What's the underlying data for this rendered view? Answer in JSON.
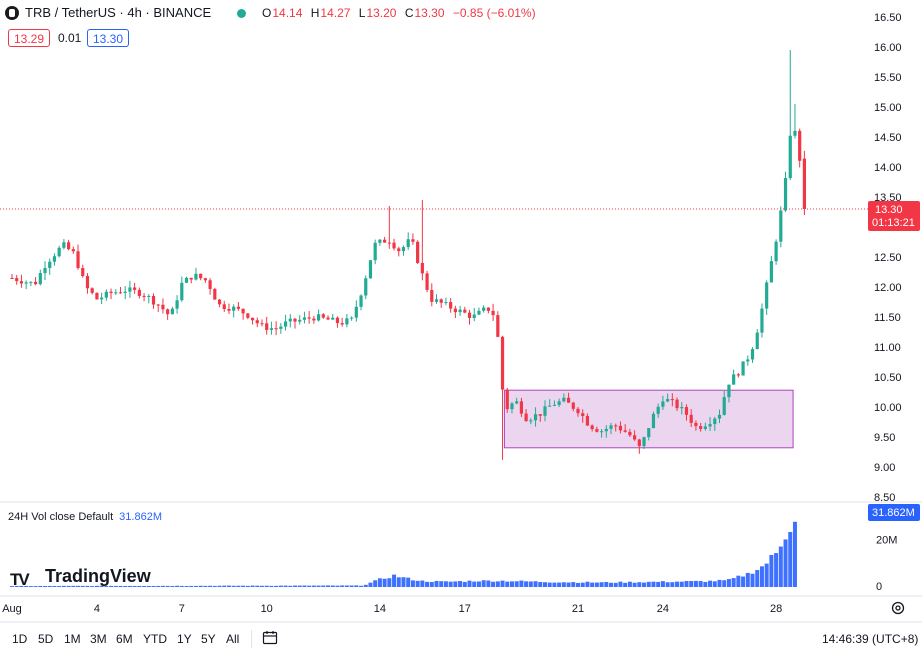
{
  "header": {
    "title": "TRB / TetherUS · 4h · BINANCE",
    "ohlc": [
      {
        "k": "O",
        "v": "14.14"
      },
      {
        "k": "H",
        "v": "14.27"
      },
      {
        "k": "L",
        "v": "13.20"
      },
      {
        "k": "C",
        "v": "13.30"
      }
    ],
    "change": "−0.85 (−6.01%)"
  },
  "quote": {
    "sell": "13.29",
    "spread": "0.01",
    "buy": "13.30"
  },
  "volume_pane": {
    "legend": "24H Vol close Default",
    "value": "31.862M"
  },
  "branding": "TradingView",
  "current_price": {
    "value": "13.30",
    "countdown": "01:13:21"
  },
  "timeframes": [
    "1D",
    "5D",
    "1M",
    "3M",
    "6M",
    "YTD",
    "1Y",
    "5Y",
    "All"
  ],
  "clock": "14:46:39 (UTC+8)",
  "colors": {
    "up": "#22ab94",
    "down": "#f23645",
    "volume": "#2962ff",
    "zone_fill": "#e1bee7",
    "zone_border": "#ab47bc"
  },
  "icons": {
    "calendar": "calendar-range-icon",
    "settings": "gear-icon"
  },
  "chart_data": {
    "type": "candlestick",
    "price_axis": {
      "ticks": [
        "16.50",
        "16.00",
        "15.50",
        "15.00",
        "14.50",
        "14.00",
        "13.50",
        "12.50",
        "12.00",
        "11.50",
        "11.00",
        "10.50",
        "10.00",
        "9.50",
        "9.00",
        "8.50"
      ],
      "range": [
        8.5,
        16.5
      ]
    },
    "time_axis": {
      "ticks": [
        "Aug",
        "4",
        "7",
        "10",
        "14",
        "17",
        "21",
        "24",
        "28"
      ],
      "day_range": [
        1,
        29
      ]
    },
    "volume_axis": {
      "ticks": [
        "20M",
        "0"
      ],
      "max_label": "31.862M",
      "max": 32
    },
    "zone": {
      "price_low": 9.32,
      "price_high": 10.28,
      "day_start": 18.4,
      "day_end": 28.6
    },
    "price_anchors": [
      [
        1.0,
        12.15
      ],
      [
        1.4,
        12.1
      ],
      [
        1.8,
        12.05
      ],
      [
        2.2,
        12.4
      ],
      [
        2.8,
        12.7
      ],
      [
        3.2,
        12.55
      ],
      [
        3.6,
        12.0
      ],
      [
        4.0,
        11.8
      ],
      [
        4.5,
        11.9
      ],
      [
        5.0,
        11.95
      ],
      [
        5.6,
        11.9
      ],
      [
        6.2,
        11.7
      ],
      [
        6.6,
        11.5
      ],
      [
        7.0,
        12.05
      ],
      [
        7.4,
        12.2
      ],
      [
        7.9,
        12.1
      ],
      [
        8.3,
        11.7
      ],
      [
        8.8,
        11.65
      ],
      [
        9.3,
        11.55
      ],
      [
        9.8,
        11.35
      ],
      [
        10.3,
        11.3
      ],
      [
        10.7,
        11.4
      ],
      [
        11.2,
        11.45
      ],
      [
        11.7,
        11.5
      ],
      [
        12.2,
        11.45
      ],
      [
        12.6,
        11.4
      ],
      [
        13.0,
        11.45
      ],
      [
        13.4,
        12.0
      ],
      [
        13.8,
        12.7
      ],
      [
        14.3,
        12.8
      ],
      [
        14.7,
        12.6
      ],
      [
        15.1,
        12.8
      ],
      [
        15.5,
        12.2
      ],
      [
        15.8,
        11.8
      ],
      [
        16.3,
        11.7
      ],
      [
        16.8,
        11.6
      ],
      [
        17.3,
        11.5
      ],
      [
        17.8,
        11.65
      ],
      [
        18.1,
        11.5
      ],
      [
        18.4,
        9.95
      ],
      [
        18.8,
        10.1
      ],
      [
        19.2,
        9.8
      ],
      [
        19.7,
        9.9
      ],
      [
        20.1,
        10.05
      ],
      [
        20.5,
        10.1
      ],
      [
        21.0,
        9.95
      ],
      [
        21.4,
        9.7
      ],
      [
        21.8,
        9.6
      ],
      [
        22.3,
        9.7
      ],
      [
        22.8,
        9.55
      ],
      [
        23.2,
        9.3
      ],
      [
        23.6,
        9.8
      ],
      [
        24.0,
        10.15
      ],
      [
        24.4,
        10.05
      ],
      [
        24.8,
        9.9
      ],
      [
        25.2,
        9.65
      ],
      [
        25.6,
        9.75
      ],
      [
        26.0,
        9.9
      ],
      [
        26.3,
        10.4
      ],
      [
        26.7,
        10.6
      ],
      [
        27.1,
        10.9
      ],
      [
        27.4,
        11.4
      ],
      [
        27.7,
        12.1
      ],
      [
        28.0,
        12.8
      ],
      [
        28.3,
        13.6
      ],
      [
        28.55,
        14.8
      ],
      [
        28.8,
        14.3
      ],
      [
        29.0,
        13.3
      ]
    ],
    "volume_anchors": [
      [
        1.0,
        0.4
      ],
      [
        13.4,
        0.6
      ],
      [
        14.0,
        3.2
      ],
      [
        14.5,
        4.8
      ],
      [
        15.0,
        3.5
      ],
      [
        15.5,
        2.5
      ],
      [
        16.3,
        2.2
      ],
      [
        17.5,
        2.6
      ],
      [
        18.4,
        2.6
      ],
      [
        20.0,
        2.1
      ],
      [
        22.0,
        1.9
      ],
      [
        24.0,
        2.2
      ],
      [
        25.5,
        2.4
      ],
      [
        26.3,
        2.8
      ],
      [
        27.0,
        5.5
      ],
      [
        27.5,
        8.5
      ],
      [
        28.0,
        14
      ],
      [
        28.4,
        24
      ],
      [
        28.8,
        31.862
      ]
    ]
  }
}
